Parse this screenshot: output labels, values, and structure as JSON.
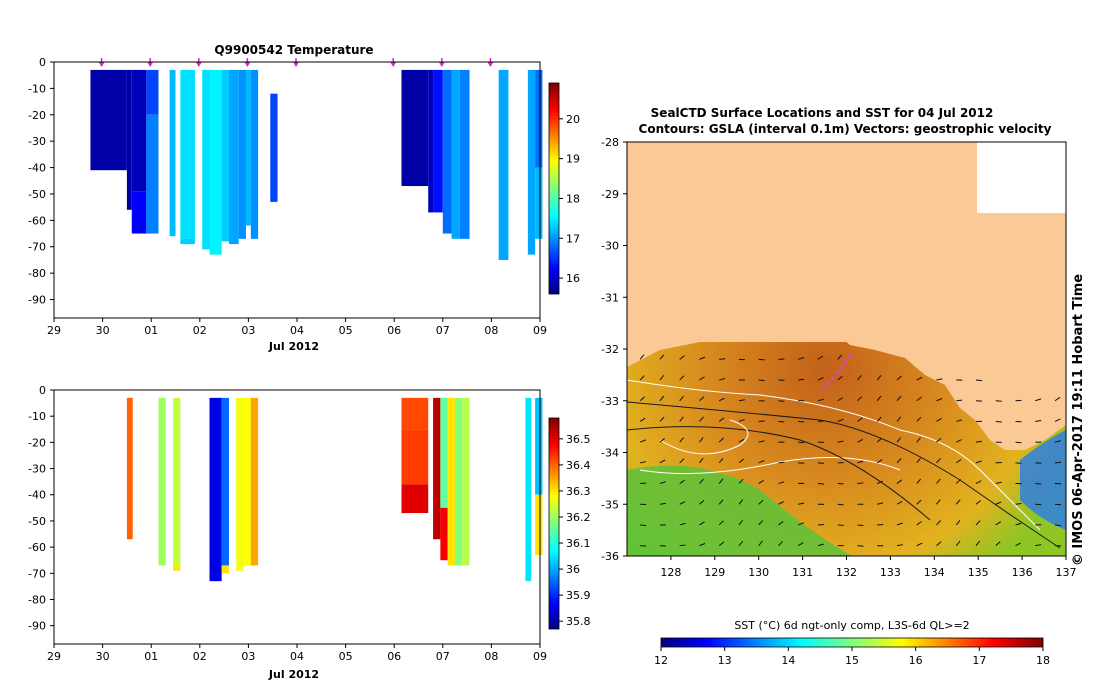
{
  "chart_data": [
    {
      "type": "heatmap",
      "title": "Q9900542  Temperature",
      "xlabel": "Jul 2012",
      "ylabel": "",
      "x_tick_labels": [
        "29",
        "30",
        "01",
        "02",
        "03",
        "04",
        "05",
        "06",
        "07",
        "08",
        "09"
      ],
      "xlim_days": [
        0,
        10
      ],
      "ylim": [
        -97,
        0
      ],
      "y_ticks": [
        0,
        -10,
        -20,
        -30,
        -40,
        -50,
        -60,
        -70,
        -80,
        -90
      ],
      "colorbar": {
        "min": 15.6,
        "max": 20.9,
        "ticks": [
          16,
          17,
          18,
          19,
          20
        ]
      },
      "profile_markers_days": [
        1.0,
        2.0,
        3.0,
        4.0,
        5.0,
        7.0,
        8.0,
        9.0
      ],
      "profiles": [
        {
          "x0": 0.75,
          "x1": 1.5,
          "segments": [
            [
              -3,
              -41,
              15.8
            ]
          ]
        },
        {
          "x0": 1.5,
          "x1": 1.6,
          "segments": [
            [
              -3,
              -56,
              15.8
            ]
          ]
        },
        {
          "x0": 1.6,
          "x1": 1.9,
          "segments": [
            [
              -3,
              -49,
              15.9
            ],
            [
              -49,
              -65,
              16.2
            ]
          ]
        },
        {
          "x0": 1.9,
          "x1": 2.15,
          "segments": [
            [
              -3,
              -20,
              16.6
            ],
            [
              -20,
              -65,
              16.9
            ]
          ]
        },
        {
          "x0": 2.38,
          "x1": 2.5,
          "segments": [
            [
              -3,
              -66,
              17.2
            ]
          ]
        },
        {
          "x0": 2.6,
          "x1": 2.9,
          "segments": [
            [
              -3,
              -67,
              17.4
            ],
            [
              -67,
              -69,
              17.3
            ]
          ]
        },
        {
          "x0": 3.05,
          "x1": 3.2,
          "segments": [
            [
              -3,
              -71,
              17.4
            ]
          ]
        },
        {
          "x0": 3.2,
          "x1": 3.45,
          "segments": [
            [
              -3,
              -73,
              17.5
            ]
          ]
        },
        {
          "x0": 3.45,
          "x1": 3.6,
          "segments": [
            [
              -3,
              -68,
              17.3
            ]
          ]
        },
        {
          "x0": 3.6,
          "x1": 3.8,
          "segments": [
            [
              -3,
              -69,
              17.1
            ]
          ]
        },
        {
          "x0": 3.8,
          "x1": 3.95,
          "segments": [
            [
              -3,
              -67,
              17.0
            ]
          ]
        },
        {
          "x0": 3.95,
          "x1": 4.05,
          "segments": [
            [
              -3,
              -62,
              17.2
            ]
          ]
        },
        {
          "x0": 4.05,
          "x1": 4.2,
          "segments": [
            [
              -3,
              -67,
              17.0
            ]
          ]
        },
        {
          "x0": 4.45,
          "x1": 4.6,
          "segments": [
            [
              -12,
              -53,
              16.6
            ]
          ]
        },
        {
          "x0": 7.15,
          "x1": 7.7,
          "segments": [
            [
              -3,
              -47,
              15.8
            ]
          ]
        },
        {
          "x0": 7.7,
          "x1": 7.8,
          "segments": [
            [
              -3,
              -57,
              15.9
            ]
          ]
        },
        {
          "x0": 7.8,
          "x1": 8.0,
          "segments": [
            [
              -3,
              -57,
              16.3
            ]
          ]
        },
        {
          "x0": 8.0,
          "x1": 8.18,
          "segments": [
            [
              -3,
              -65,
              16.8
            ]
          ]
        },
        {
          "x0": 8.18,
          "x1": 8.35,
          "segments": [
            [
              -3,
              -67,
              17.1
            ]
          ]
        },
        {
          "x0": 8.35,
          "x1": 8.55,
          "segments": [
            [
              -3,
              -67,
              16.9
            ]
          ]
        },
        {
          "x0": 9.15,
          "x1": 9.35,
          "segments": [
            [
              -3,
              -75,
              17.1
            ]
          ]
        },
        {
          "x0": 9.75,
          "x1": 9.9,
          "segments": [
            [
              -3,
              -73,
              17.1
            ]
          ]
        },
        {
          "x0": 9.9,
          "x1": 10.05,
          "segments": [
            [
              -3,
              -40,
              16.8
            ],
            [
              -40,
              -67,
              17.2
            ]
          ]
        }
      ]
    },
    {
      "type": "heatmap",
      "title": "",
      "xlabel": "Jul 2012",
      "ylabel": "",
      "x_tick_labels": [
        "29",
        "30",
        "01",
        "02",
        "03",
        "04",
        "05",
        "06",
        "07",
        "08",
        "09"
      ],
      "xlim_days": [
        0,
        10
      ],
      "ylim": [
        -97,
        0
      ],
      "y_ticks": [
        0,
        -10,
        -20,
        -30,
        -40,
        -50,
        -60,
        -70,
        -80,
        -90
      ],
      "colorbar": {
        "min": 35.77,
        "max": 36.58,
        "ticks": [
          35.8,
          35.9,
          36,
          36.1,
          36.2,
          36.3,
          36.4,
          36.5
        ]
      },
      "profiles": [
        {
          "x0": 1.5,
          "x1": 1.62,
          "segments": [
            [
              -3,
              -57,
              36.4
            ]
          ]
        },
        {
          "x0": 2.15,
          "x1": 2.3,
          "segments": [
            [
              -3,
              -67,
              36.2
            ]
          ]
        },
        {
          "x0": 2.45,
          "x1": 2.6,
          "segments": [
            [
              -3,
              -67,
              36.23
            ],
            [
              -67,
              -69,
              36.3
            ]
          ]
        },
        {
          "x0": 3.2,
          "x1": 3.45,
          "segments": [
            [
              -3,
              -73,
              35.85
            ]
          ]
        },
        {
          "x0": 3.45,
          "x1": 3.6,
          "segments": [
            [
              -3,
              -67,
              35.95
            ],
            [
              -67,
              -70,
              36.3
            ]
          ]
        },
        {
          "x0": 3.75,
          "x1": 3.9,
          "segments": [
            [
              -3,
              -69,
              36.27
            ]
          ]
        },
        {
          "x0": 3.9,
          "x1": 4.05,
          "segments": [
            [
              -3,
              -67,
              36.28
            ]
          ]
        },
        {
          "x0": 4.05,
          "x1": 4.2,
          "segments": [
            [
              -3,
              -67,
              36.35
            ]
          ]
        },
        {
          "x0": 7.15,
          "x1": 7.7,
          "segments": [
            [
              -3,
              -15,
              36.42
            ],
            [
              -15,
              -36,
              36.43
            ],
            [
              -36,
              -47,
              36.5
            ]
          ]
        },
        {
          "x0": 7.8,
          "x1": 7.95,
          "segments": [
            [
              -3,
              -57,
              36.53
            ]
          ]
        },
        {
          "x0": 7.95,
          "x1": 8.1,
          "segments": [
            [
              -3,
              -45,
              36.15
            ],
            [
              -45,
              -65,
              36.48
            ]
          ]
        },
        {
          "x0": 8.1,
          "x1": 8.25,
          "segments": [
            [
              -3,
              -67,
              36.3
            ]
          ]
        },
        {
          "x0": 8.25,
          "x1": 8.4,
          "segments": [
            [
              -3,
              -67,
              36.18
            ]
          ]
        },
        {
          "x0": 8.4,
          "x1": 8.55,
          "segments": [
            [
              -3,
              -67,
              36.22
            ]
          ]
        },
        {
          "x0": 9.7,
          "x1": 9.82,
          "segments": [
            [
              -3,
              -73,
              36.05
            ]
          ]
        },
        {
          "x0": 9.9,
          "x1": 10.05,
          "segments": [
            [
              -3,
              -40,
              36.02
            ],
            [
              -40,
              -63,
              36.3
            ]
          ]
        }
      ]
    },
    {
      "type": "map",
      "title": "SealCTD Surface Locations and SST for 04 Jul 2012",
      "subtitle": "Contours: GSLA (interval 0.1m) Vectors: geostrophic velocity",
      "x_tick_labels": [
        "128",
        "129",
        "130",
        "131",
        "132",
        "133",
        "134",
        "135",
        "136",
        "137"
      ],
      "xlim": [
        127,
        137
      ],
      "y_tick_labels": [
        "-28",
        "-29",
        "-30",
        "-31",
        "-32",
        "-33",
        "-34",
        "-35",
        "-36"
      ],
      "ylim": [
        -36,
        -28
      ],
      "colorbar": {
        "label": "SST (°C) 6d ngt-only comp, L3S-6d QL>=2",
        "min": 12,
        "max": 18,
        "ticks": [
          12,
          13,
          14,
          15,
          16,
          17,
          18
        ]
      },
      "seal_track": [
        [
          132.1,
          -32.1
        ],
        [
          131.95,
          -32.3
        ],
        [
          131.8,
          -32.45
        ],
        [
          131.6,
          -32.65
        ],
        [
          131.4,
          -32.85
        ]
      ],
      "credit": "© IMOS 06-Apr-2017 19:11 Hobart Time"
    }
  ]
}
